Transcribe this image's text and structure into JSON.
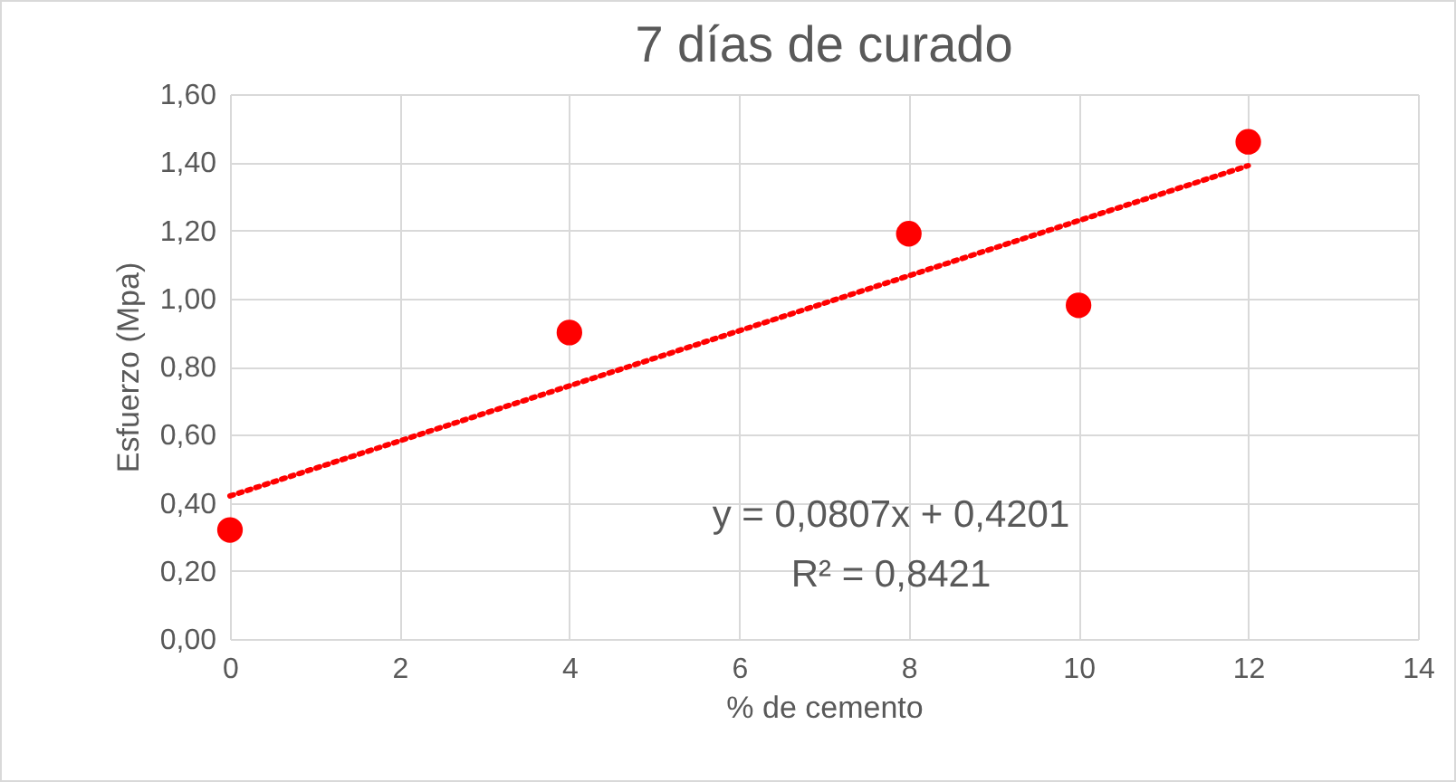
{
  "chart_data": {
    "type": "scatter",
    "title": "7 días de curado",
    "xlabel": "% de cemento",
    "ylabel": "Esfuerzo (Mpa)",
    "xlim": [
      0,
      14
    ],
    "xticks": [
      0,
      2,
      4,
      6,
      8,
      10,
      12,
      14
    ],
    "ylim": [
      0,
      1.6
    ],
    "yticks": [
      {
        "value": 0,
        "label": "0,00"
      },
      {
        "value": 0.2,
        "label": "0,20"
      },
      {
        "value": 0.4,
        "label": "0,40"
      },
      {
        "value": 0.6,
        "label": "0,60"
      },
      {
        "value": 0.8,
        "label": "0,80"
      },
      {
        "value": 1.0,
        "label": "1,00"
      },
      {
        "value": 1.2,
        "label": "1,20"
      },
      {
        "value": 1.4,
        "label": "1,40"
      },
      {
        "value": 1.6,
        "label": "1,60"
      }
    ],
    "grid": true,
    "series": [
      {
        "type": "scatter",
        "color": "#ff0000",
        "marker": "circle",
        "x": [
          0,
          4,
          8,
          10,
          12
        ],
        "values": [
          0.32,
          0.9,
          1.19,
          0.98,
          1.46
        ]
      },
      {
        "type": "line",
        "color": "#ff0000",
        "line_style": "dotted",
        "marker": "none",
        "x": [
          0,
          12
        ],
        "values": [
          0.42,
          1.39
        ]
      }
    ],
    "annotations": [
      "y = 0,0807x + 0,4201",
      "R² = 0,8421"
    ]
  }
}
